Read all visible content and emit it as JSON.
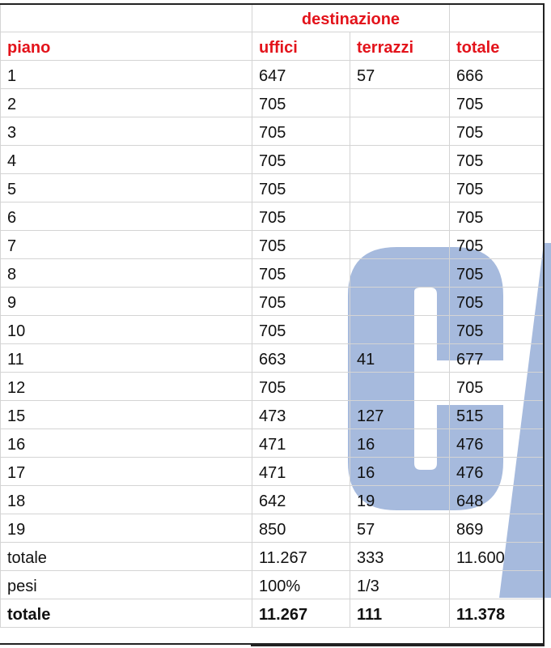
{
  "header": {
    "group": "destinazione",
    "columns": [
      "piano",
      "uffici",
      "terrazzi",
      "totale"
    ]
  },
  "rows": [
    [
      "1",
      "647",
      "57",
      "666"
    ],
    [
      "2",
      "705",
      "",
      "705"
    ],
    [
      "3",
      "705",
      "",
      "705"
    ],
    [
      "4",
      "705",
      "",
      "705"
    ],
    [
      "5",
      "705",
      "",
      "705"
    ],
    [
      "6",
      "705",
      "",
      "705"
    ],
    [
      "7",
      "705",
      "",
      "705"
    ],
    [
      "8",
      "705",
      "",
      "705"
    ],
    [
      "9",
      "705",
      "",
      "705"
    ],
    [
      "10",
      "705",
      "",
      "705"
    ],
    [
      "11",
      "663",
      "41",
      "677"
    ],
    [
      "12",
      "705",
      "",
      "705"
    ],
    [
      "15",
      "473",
      "127",
      "515"
    ],
    [
      "16",
      "471",
      "16",
      "476"
    ],
    [
      "17",
      "471",
      "16",
      "476"
    ],
    [
      "18",
      "642",
      "19",
      "648"
    ],
    [
      "19",
      "850",
      "57",
      "869"
    ]
  ],
  "totals": {
    "sum": [
      "totale",
      "11.267",
      "333",
      "11.600"
    ],
    "weights": [
      "pesi",
      "100%",
      " 1/3",
      ""
    ],
    "weighted": [
      "totale",
      "11.267",
      "111",
      "11.378"
    ]
  },
  "colors": {
    "header_text": "#e3131b",
    "watermark": "#6f8fc8"
  },
  "watermark": {
    "icon": "logo-watermark-c-slash"
  }
}
